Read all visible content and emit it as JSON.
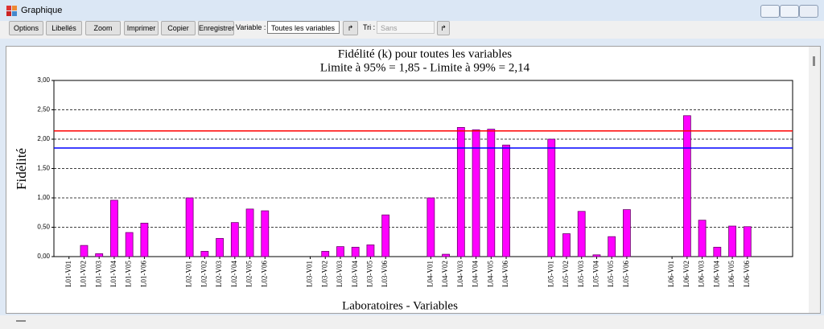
{
  "window": {
    "title": "Graphique"
  },
  "toolbar": {
    "buttons": [
      "Options",
      "Libellés",
      "Zoom",
      "Imprimer",
      "Copier",
      "Enregistrer"
    ],
    "variable_label": "Variable :",
    "variable_value": "Toutes les variables",
    "sort_label": "Tri :",
    "sort_value": "Sans"
  },
  "chart_data": {
    "type": "bar",
    "title": "Fidélité (k) pour toutes les variables",
    "subtitle": "Limite à 95% = 1,85 - Limite à 99% = 2,14",
    "xlabel": "Laboratoires - Variables",
    "ylabel": "Fidélité",
    "categories": [
      "L01-V01",
      "L01-V02",
      "L01-V03",
      "L01-V04",
      "L01-V05",
      "L01-V06",
      null,
      null,
      "L02-V01",
      "L02-V02",
      "L02-V03",
      "L02-V04",
      "L02-V05",
      "L02-V06",
      null,
      null,
      "L03-V01",
      "L03-V02",
      "L03-V03",
      "L03-V04",
      "L03-V05",
      "L03-V06",
      null,
      null,
      "L04-V01",
      "L04-V02",
      "L04-V03",
      "L04-V04",
      "L04-V05",
      "L04-V06",
      null,
      null,
      "L05-V01",
      "L05-V02",
      "L05-V03",
      "L05-V04",
      "L05-V05",
      "L05-V06",
      null,
      null,
      "L06-V01",
      "L06-V02",
      "L06-V03",
      "L06-V04",
      "L06-V05",
      "L06-V06"
    ],
    "values": [
      0,
      0.19,
      0.05,
      0.96,
      0.41,
      0.57,
      null,
      null,
      1.0,
      0.09,
      0.31,
      0.58,
      0.81,
      0.78,
      null,
      null,
      0,
      0.09,
      0.17,
      0.16,
      0.2,
      0.71,
      null,
      null,
      1.0,
      0.04,
      2.2,
      2.16,
      2.17,
      1.9,
      null,
      null,
      2.0,
      0.39,
      0.77,
      0.03,
      0.34,
      0.8,
      null,
      null,
      0,
      2.4,
      0.62,
      0.16,
      0.52,
      0.51
    ],
    "color": "#ff00ff",
    "ylim": [
      0,
      3
    ],
    "yticks": [
      {
        "value": 0,
        "label": "0,00"
      },
      {
        "value": 0.5,
        "label": "0,50"
      },
      {
        "value": 1,
        "label": "1,00"
      },
      {
        "value": 1.5,
        "label": "1,50"
      },
      {
        "value": 2,
        "label": "2,00"
      },
      {
        "value": 2.5,
        "label": "2,50"
      },
      {
        "value": 3,
        "label": "3,00"
      }
    ],
    "grid": true,
    "reference_lines": [
      {
        "value": 1.85,
        "color": "#0000ff"
      },
      {
        "value": 2.14,
        "color": "#ff0000"
      }
    ]
  }
}
